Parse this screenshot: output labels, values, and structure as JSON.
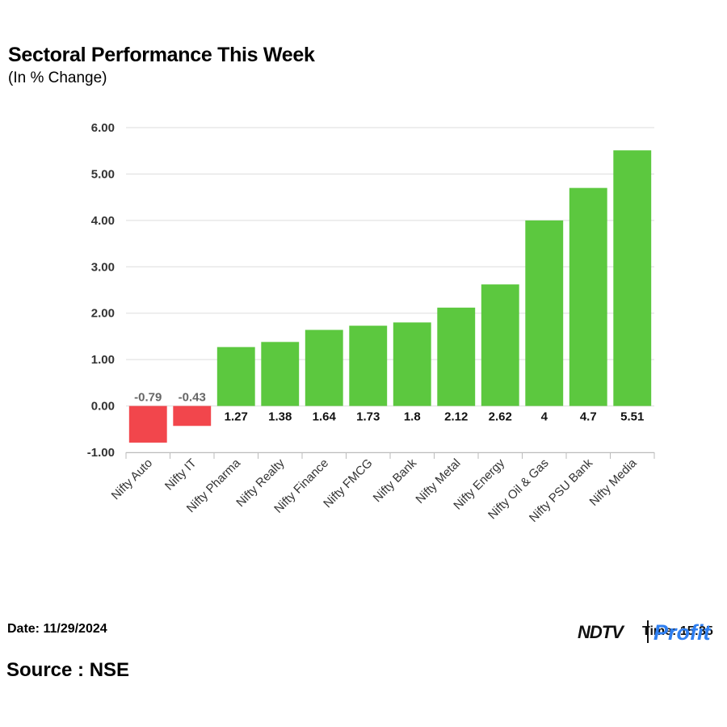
{
  "title": "Sectoral Performance This Week",
  "subtitle": "(In % Change)",
  "date_text": "Date: 11/29/2024",
  "source_text": "Source : NSE",
  "brand": {
    "ndtv": "NDTV",
    "profit": "Profit",
    "time_text": "Time: 15:35"
  },
  "colors": {
    "positive": "#5cc83f",
    "negative": "#f2464c",
    "grid": "#dddddd"
  },
  "chart_data": {
    "type": "bar",
    "title": "Sectoral Performance This Week",
    "subtitle": "(In % Change)",
    "xlabel": "",
    "ylabel": "",
    "ylim": [
      -1,
      6
    ],
    "yticks": [
      -1,
      0,
      1,
      2,
      3,
      4,
      5,
      6
    ],
    "ytick_labels": [
      "-1.00",
      "0.00",
      "1.00",
      "2.00",
      "3.00",
      "4.00",
      "5.00",
      "6.00"
    ],
    "grid": true,
    "categories": [
      "Nifty Auto",
      "Nifty IT",
      "Nifty Pharma",
      "Nifty Realty",
      "Nifty Finance",
      "Nifty FMCG",
      "Nifty Bank",
      "Nifty Metal",
      "Nifty Energy",
      "Nifty Oil & Gas",
      "Nifty PSU Bank",
      "Nifty Media"
    ],
    "values": [
      -0.79,
      -0.43,
      1.27,
      1.38,
      1.64,
      1.73,
      1.8,
      2.12,
      2.62,
      4,
      4.7,
      5.51
    ],
    "value_labels": [
      "-0.79",
      "-0.43",
      "1.27",
      "1.38",
      "1.64",
      "1.73",
      "1.8",
      "2.12",
      "2.62",
      "4",
      "4.7",
      "5.51"
    ]
  }
}
